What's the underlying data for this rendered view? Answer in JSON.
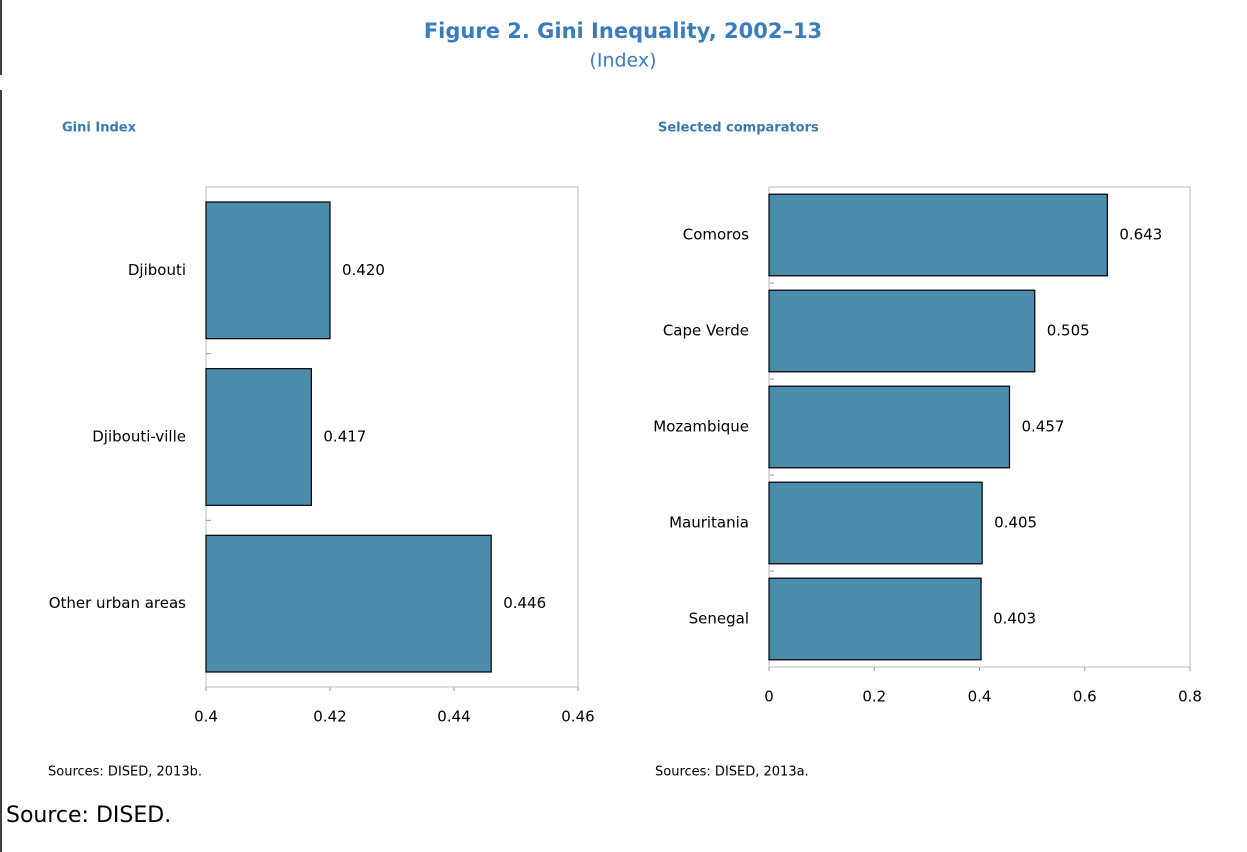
{
  "title": "Figure 2. Gini Inequality, 2002–13",
  "subtitle": "(Index)",
  "footer": "Source: DISED.",
  "chart_data": [
    {
      "type": "bar",
      "orientation": "horizontal",
      "title": "Gini Index",
      "categories": [
        "Djibouti",
        "Djibouti-ville",
        "Other urban areas"
      ],
      "values": [
        0.42,
        0.417,
        0.446
      ],
      "value_labels": [
        "0.420",
        "0.417",
        "0.446"
      ],
      "color": "#4b8bab",
      "xlim": [
        0.4,
        0.46
      ],
      "xticks": [
        0.4,
        0.42,
        0.44,
        0.46
      ],
      "grid": false,
      "note": "Sources: DISED, 2013b."
    },
    {
      "type": "bar",
      "orientation": "horizontal",
      "title": "Selected comparators",
      "categories": [
        "Comoros",
        "Cape Verde",
        "Mozambique",
        "Mauritania",
        "Senegal"
      ],
      "values": [
        0.643,
        0.505,
        0.457,
        0.405,
        0.403
      ],
      "value_labels": [
        "0.643",
        "0.505",
        "0.457",
        "0.405",
        "0.403"
      ],
      "color": "#4b8bab",
      "xlim": [
        0,
        0.8
      ],
      "xticks": [
        0,
        0.2,
        0.4,
        0.6,
        0.8
      ],
      "grid": false,
      "note": "Sources: DISED, 2013a."
    }
  ]
}
